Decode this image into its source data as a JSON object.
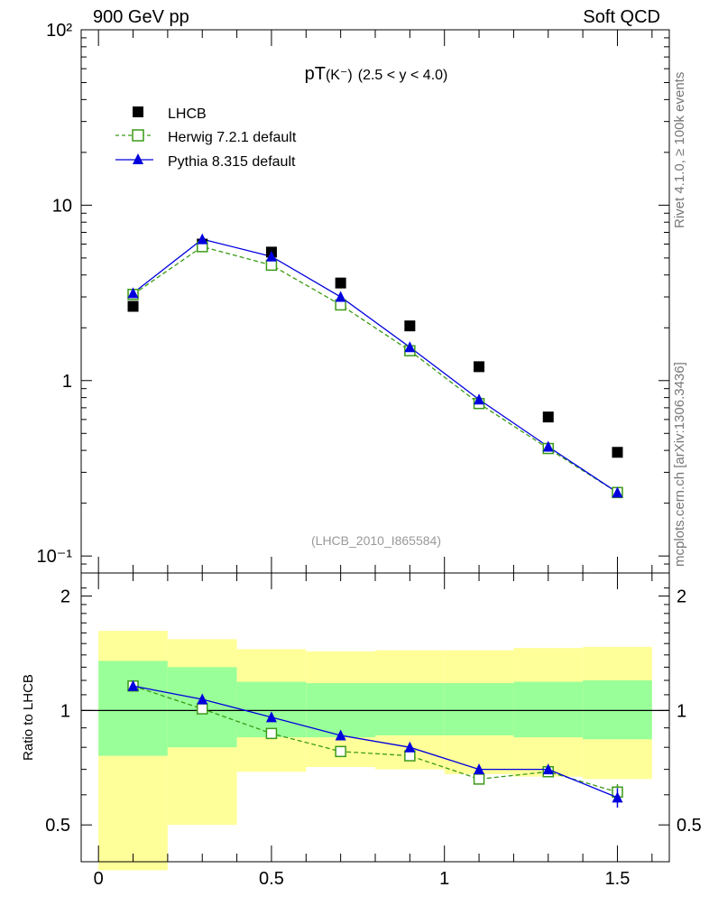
{
  "header": {
    "left": "900 GeV pp",
    "right": "Soft QCD"
  },
  "side_labels": {
    "top": "Rivet 4.1.0, ≥ 100k events",
    "bottom": "mcplots.cern.ch [arXiv:1306.3436]"
  },
  "chart_data": [
    {
      "type": "scatter",
      "title": "pT(K⁻) (2.5 < y < 4.0)",
      "title_main": "pT",
      "title_particle": "(K⁻)",
      "title_range": "(2.5 < y < 4.0)",
      "watermark": "(LHCB_2010_I865584)",
      "yscale": "log",
      "ylim": [
        0.08,
        100
      ],
      "xlim": [
        -0.05,
        1.65
      ],
      "y_tick_labels": [
        "10⁻¹",
        "1",
        "10",
        "10²"
      ],
      "legend_placement": "top-left",
      "x": [
        0.1,
        0.3,
        0.5,
        0.7,
        0.9,
        1.1,
        1.3,
        1.5
      ],
      "series": [
        {
          "name": "LHCB",
          "color": "#000000",
          "marker": "filled-square",
          "line": "none",
          "values": [
            2.65,
            6.0,
            5.4,
            3.6,
            2.05,
            1.2,
            0.62,
            0.39
          ]
        },
        {
          "name": "Herwig 7.2.1 default",
          "color": "#3a9a16",
          "marker": "open-square",
          "line": "dashed",
          "values": [
            3.1,
            5.8,
            4.55,
            2.7,
            1.48,
            0.74,
            0.41,
            0.23
          ]
        },
        {
          "name": "Pythia 8.315 default",
          "color": "#0000dd",
          "marker": "filled-triangle",
          "line": "solid",
          "values": [
            3.15,
            6.4,
            5.1,
            3.0,
            1.55,
            0.78,
            0.42,
            0.23
          ]
        }
      ]
    },
    {
      "type": "line",
      "ylabel": "Ratio to LHCB",
      "ylim": [
        0.4,
        2.3
      ],
      "xlim": [
        -0.05,
        1.65
      ],
      "y_ticks": [
        0.5,
        1,
        2
      ],
      "y_tick_labels": [
        "0.5",
        "1",
        "2"
      ],
      "x_ticks": [
        0,
        0.5,
        1,
        1.5
      ],
      "x_tick_labels": [
        "0",
        "0.5",
        "1",
        "1.5"
      ],
      "reference_line": 1,
      "x": [
        0.1,
        0.3,
        0.5,
        0.7,
        0.9,
        1.1,
        1.3,
        1.5
      ],
      "bands": {
        "bin_edges": [
          0,
          0.2,
          0.4,
          0.6,
          0.8,
          1.0,
          1.2,
          1.4,
          1.6
        ],
        "yellow_low": [
          0.38,
          0.5,
          0.69,
          0.71,
          0.7,
          0.68,
          0.67,
          0.66
        ],
        "yellow_high": [
          1.62,
          1.54,
          1.45,
          1.43,
          1.44,
          1.44,
          1.46,
          1.47
        ],
        "green_low": [
          0.76,
          0.8,
          0.85,
          0.85,
          0.86,
          0.86,
          0.85,
          0.84
        ],
        "green_high": [
          1.35,
          1.3,
          1.19,
          1.18,
          1.18,
          1.18,
          1.19,
          1.2
        ],
        "yellow_color": "#ffff99",
        "green_color": "#99ff99"
      },
      "series": [
        {
          "name": "Herwig 7.2.1 default",
          "color": "#3a9a16",
          "marker": "open-square",
          "line": "dashed",
          "values": [
            1.16,
            1.01,
            0.87,
            0.78,
            0.76,
            0.66,
            0.69,
            0.61
          ],
          "errors": [
            0.01,
            0.01,
            0.01,
            0.01,
            0.01,
            0.01,
            0.015,
            0.03
          ]
        },
        {
          "name": "Pythia 8.315 default",
          "color": "#0000dd",
          "marker": "filled-triangle",
          "line": "solid",
          "values": [
            1.16,
            1.07,
            0.96,
            0.86,
            0.8,
            0.7,
            0.7,
            0.59
          ],
          "errors": [
            0.01,
            0.01,
            0.01,
            0.01,
            0.01,
            0.02,
            0.02,
            0.035
          ]
        }
      ]
    }
  ]
}
